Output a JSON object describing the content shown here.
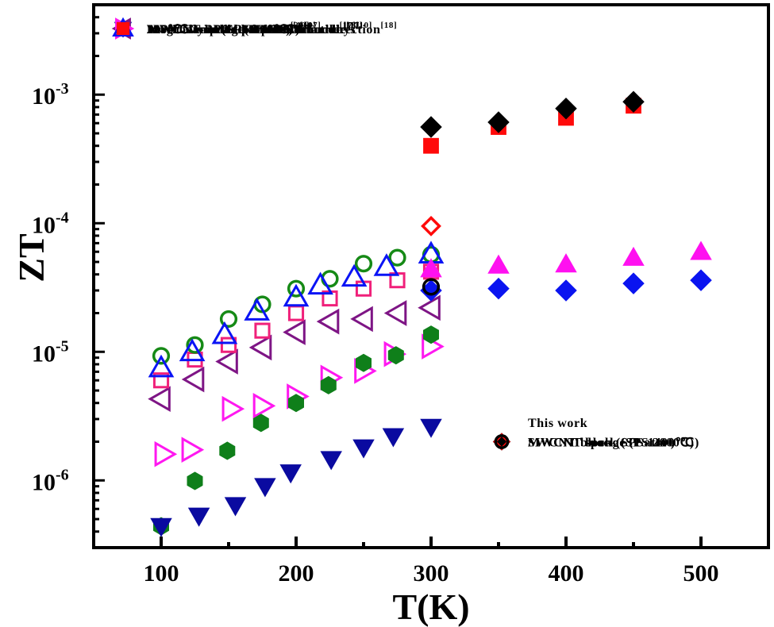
{
  "chart_data": {
    "type": "scatter",
    "title": "",
    "xlabel": "T(K)",
    "ylabel": "ZT",
    "xscale": "linear",
    "yscale": "log",
    "xlim": [
      50,
      550
    ],
    "ylim": [
      3e-07,
      0.005
    ],
    "xticks": [
      100,
      200,
      300,
      400,
      500
    ],
    "xtick_labels": [
      "100",
      "200",
      "300",
      "400",
      "500"
    ],
    "yticks": [
      1e-06,
      1e-05,
      0.0001,
      0.001
    ],
    "ytick_labels": [
      {
        "base": "10",
        "exp": "-6"
      },
      {
        "base": "10",
        "exp": "-5"
      },
      {
        "base": "10",
        "exp": "-4"
      },
      {
        "base": "10",
        "exp": "-3"
      }
    ],
    "grid": false,
    "legends": [
      {
        "placement": "top-left",
        "title": "",
        "entries": [
          0,
          1,
          2,
          3,
          4,
          5,
          6,
          7,
          8,
          9
        ]
      },
      {
        "placement": "bottom-right",
        "title": "This work",
        "entries": [
          10,
          11,
          12
        ]
      }
    ],
    "series": [
      {
        "name": "MWCNT-BP(SPS 900℃)",
        "ref": "[19]",
        "marker": "square-open",
        "color": "#F0207A",
        "x": [
          100,
          125,
          150,
          175,
          200,
          225,
          250,
          275,
          300
        ],
        "y": [
          6e-06,
          8.7e-06,
          1.13e-05,
          1.46e-05,
          2e-05,
          2.6e-05,
          3.1e-05,
          3.6e-05,
          4.2e-05
        ]
      },
      {
        "name": "MWCNT-BP(SPS 1500℃)",
        "ref": "[19]",
        "marker": "hexagon-filled",
        "color": "#0F7F1A",
        "x": [
          100,
          125,
          149,
          174,
          200,
          224,
          250,
          274,
          300
        ],
        "y": [
          4.4e-07,
          9.9e-07,
          1.7e-06,
          2.8e-06,
          4e-06,
          5.5e-06,
          8.2e-06,
          9.4e-06,
          1.36e-05
        ]
      },
      {
        "name": "MWCNT in the perpendicular direction",
        "ref": "[18]",
        "marker": "diamond-filled",
        "color": "#0A14F0",
        "x": [
          300,
          350,
          400,
          450,
          500
        ],
        "y": [
          3e-05,
          3.1e-05,
          3e-05,
          3.4e-05,
          3.6e-05
        ]
      },
      {
        "name": "MWCNT in the parallel direction",
        "ref": "[18]",
        "marker": "triangle-up-filled",
        "color": "#FF10F0",
        "x": [
          300,
          350,
          400,
          450,
          500
        ],
        "y": [
          4.4e-05,
          4.7e-05,
          4.8e-05,
          5.4e-05,
          6e-05
        ]
      },
      {
        "name": "Vertically oriented MWCNT arrays",
        "ref": "[10]",
        "marker": "triangle-down-filled",
        "color": "#0A0AA0",
        "x": [
          100,
          128,
          155,
          177,
          196,
          226,
          250,
          272,
          300
        ],
        "y": [
          4.4e-07,
          5.3e-07,
          6.4e-07,
          9e-07,
          1.15e-06,
          1.46e-06,
          1.8e-06,
          2.2e-06,
          2.6e-06
        ]
      },
      {
        "name": "2800℃ annealed MWCNT bundle",
        "ref": "[17]",
        "marker": "circle-open",
        "color": "#168A16",
        "x": [
          100,
          125,
          150,
          175,
          200,
          225,
          250,
          275,
          300
        ],
        "y": [
          9.3e-06,
          1.13e-05,
          1.8e-05,
          2.34e-05,
          3.1e-05,
          3.7e-05,
          4.85e-05,
          5.4e-05,
          5.7e-05
        ]
      },
      {
        "name": "As-grown MWCNT bundle",
        "ref": "[17]",
        "marker": "triangle-left-open",
        "color": "#7E1585",
        "x": [
          100,
          125,
          150,
          175,
          200,
          225,
          250,
          275,
          300
        ],
        "y": [
          4.3e-06,
          6.1e-06,
          8.4e-06,
          1.08e-05,
          1.42e-05,
          1.72e-05,
          1.8e-05,
          2e-05,
          2.2e-05
        ]
      },
      {
        "name": "100℃ annealed MWCNT bundle",
        "ref": "[17]",
        "marker": "triangle-right-open",
        "color": "#FF18F0",
        "x": [
          102,
          122,
          152,
          175,
          200,
          225,
          250,
          272,
          300
        ],
        "y": [
          1.6e-06,
          1.73e-06,
          3.6e-06,
          3.8e-06,
          4.5e-06,
          6.3e-06,
          7.1e-06,
          9.6e-06,
          1.1e-05
        ]
      },
      {
        "name": "1250℃ annealed MWCNT bundle",
        "ref": "[17]",
        "marker": "triangle-up-open",
        "color": "#0A14F5",
        "x": [
          100,
          123,
          147,
          171,
          200,
          218,
          243,
          267,
          300
        ],
        "y": [
          7.5e-06,
          1e-05,
          1.36e-05,
          2.07e-05,
          2.66e-05,
          3.3e-05,
          3.8e-05,
          4.6e-05,
          5.75e-05
        ]
      },
      {
        "name": "MWCNT sponge(1 atm )",
        "ref": "[20]",
        "marker": "square-filled",
        "color": "#FF0A0A",
        "x": [
          300,
          350,
          400,
          450
        ],
        "y": [
          0.0004,
          0.00056,
          0.00066,
          0.00082
        ]
      },
      {
        "name": "MWCNT sponge (1 atm )",
        "ref": "",
        "marker": "diamond-filled",
        "color": "#000000",
        "x": [
          300,
          350,
          400,
          450
        ],
        "y": [
          0.00056,
          0.00061,
          0.00078,
          0.00088
        ]
      },
      {
        "name": "SWCNT block (SPS 1400℃)",
        "ref": "",
        "marker": "diamond-open",
        "color": "#FF0A0A",
        "x": [
          300
        ],
        "y": [
          9.5e-05
        ]
      },
      {
        "name": "MWCNT block (SPS 2000℃)",
        "ref": "",
        "marker": "circle-open",
        "color": "#000000",
        "x": [
          300
        ],
        "y": [
          3.2e-05
        ]
      }
    ]
  }
}
